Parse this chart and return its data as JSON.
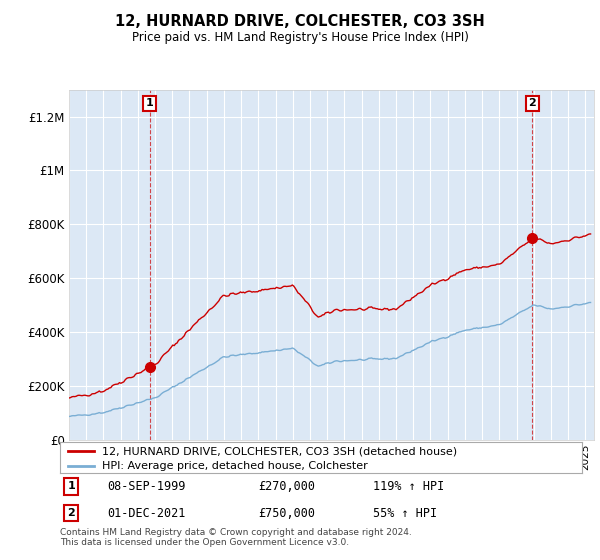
{
  "title": "12, HURNARD DRIVE, COLCHESTER, CO3 3SH",
  "subtitle": "Price paid vs. HM Land Registry's House Price Index (HPI)",
  "ylabel_ticks": [
    "£0",
    "£200K",
    "£400K",
    "£600K",
    "£800K",
    "£1M",
    "£1.2M"
  ],
  "ytick_values": [
    0,
    200000,
    400000,
    600000,
    800000,
    1000000,
    1200000
  ],
  "ylim": [
    0,
    1300000
  ],
  "xlim_start": 1995.0,
  "xlim_end": 2025.5,
  "sale1_date": 1999.69,
  "sale1_price": 270000,
  "sale2_date": 2021.92,
  "sale2_price": 750000,
  "legend_line1": "12, HURNARD DRIVE, COLCHESTER, CO3 3SH (detached house)",
  "legend_line2": "HPI: Average price, detached house, Colchester",
  "annotation1_date": "08-SEP-1999",
  "annotation1_price": "£270,000",
  "annotation1_hpi": "119% ↑ HPI",
  "annotation2_date": "01-DEC-2021",
  "annotation2_price": "£750,000",
  "annotation2_hpi": "55% ↑ HPI",
  "footer": "Contains HM Land Registry data © Crown copyright and database right 2024.\nThis data is licensed under the Open Government Licence v3.0.",
  "line_color_red": "#cc0000",
  "line_color_blue": "#7aaed4",
  "grid_color": "#cccccc",
  "bg_fill_color": "#dce8f5",
  "background_color": "#ffffff"
}
